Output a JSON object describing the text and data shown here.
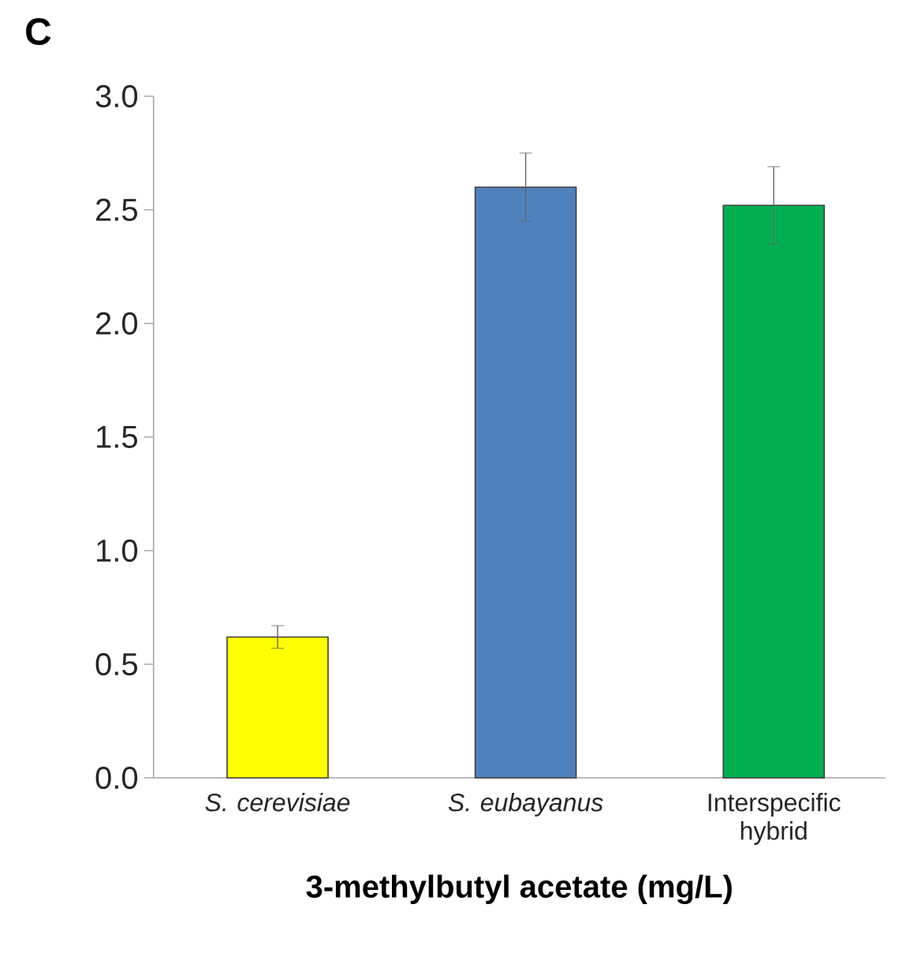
{
  "chart_data": {
    "type": "bar",
    "categories": [
      "*S. cerevisiae*",
      "*S. eubayanus*",
      "Interspecific hybrid"
    ],
    "values": [
      0.62,
      2.6,
      2.52
    ],
    "errors": [
      0.05,
      0.15,
      0.17
    ],
    "colors": [
      "#ffff00",
      "#4f81bd",
      "#00b050"
    ],
    "xlabel": "3-methylbutyl acetate (mg/L)",
    "annotations": [
      "C"
    ],
    "ylim": [
      0,
      3
    ],
    "yticks": [
      {
        "value": 0,
        "label": "0.0"
      },
      {
        "value": 0.5,
        "label": "0.5"
      },
      {
        "value": 1,
        "label": "1.0"
      },
      {
        "value": 1.5,
        "label": "1.5"
      },
      {
        "value": 2,
        "label": "2.0"
      },
      {
        "value": 2.5,
        "label": "2.5"
      },
      {
        "value": 3,
        "label": "3.0"
      }
    ]
  }
}
